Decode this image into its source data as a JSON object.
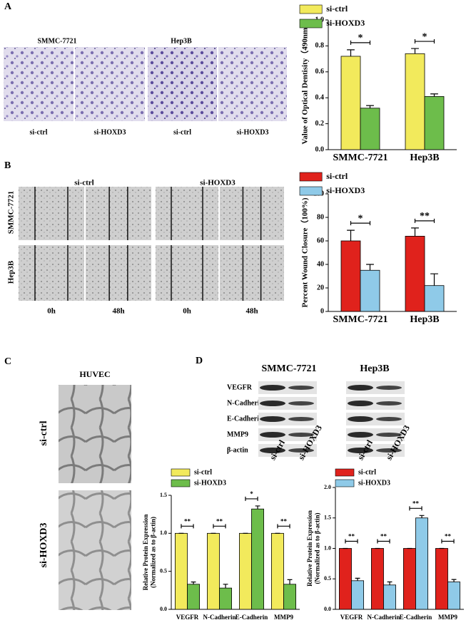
{
  "panels": {
    "A": {
      "letter": "A",
      "image_titles": [
        "SMMC-7721",
        "Hep3B"
      ],
      "image_labels": [
        "si-ctrl",
        "si-HOXD3",
        "si-ctrl",
        "si-HOXD3"
      ]
    },
    "B": {
      "letter": "B",
      "column_titles": [
        "si-ctrl",
        "si-HOXD3"
      ],
      "row_labels": [
        "SMMC-7721",
        "Hep3B"
      ],
      "time_labels": [
        "0h",
        "48h",
        "0h",
        "48h"
      ]
    },
    "C": {
      "letter": "C",
      "title": "HUVEC",
      "row_labels": [
        "si-ctrl",
        "si-HOXD3"
      ]
    },
    "D": {
      "letter": "D",
      "blot_titles": [
        "SMMC-7721",
        "Hep3B"
      ],
      "blot_rows": [
        "VEGFR",
        "N-Cadherin",
        "E-Cadherin",
        "MMP9",
        "β-actin"
      ],
      "lane_labels": [
        "si-ctrl",
        "si-HOXD3",
        "si-ctrl",
        "si-HOXD3"
      ]
    }
  },
  "chart_data": [
    {
      "type": "bar",
      "y_label": [
        "Value of Optical Dentisity（490nm)"
      ],
      "categories": [
        "SMMC-7721",
        "Hep3B"
      ],
      "series": [
        {
          "name": "si-ctrl",
          "color": "#f2ea5c",
          "values": [
            0.72,
            0.74
          ],
          "errors": [
            0.05,
            0.04
          ]
        },
        {
          "name": "si-HOXD3",
          "color": "#6dbd4b",
          "values": [
            0.32,
            0.41
          ],
          "errors": [
            0.02,
            0.02
          ]
        }
      ],
      "significance": [
        "*",
        "*"
      ],
      "ylim": [
        0,
        1.0
      ],
      "yticks": [
        {
          "value": 0,
          "label": "0.0"
        },
        0.2,
        0.4,
        0.6,
        0.8,
        {
          "value": 1,
          "label": "1.0"
        }
      ]
    },
    {
      "type": "bar",
      "y_label": [
        "Percent Wound Closure（100%)"
      ],
      "categories": [
        "SMMC-7721",
        "Hep3B"
      ],
      "series": [
        {
          "name": "si-ctrl",
          "color": "#e0221c",
          "values": [
            60,
            64
          ],
          "errors": [
            9,
            7
          ]
        },
        {
          "name": "si-HOXD3",
          "color": "#8fcae8",
          "values": [
            35,
            22
          ],
          "errors": [
            5,
            10
          ]
        }
      ],
      "significance": [
        "*",
        "**"
      ],
      "ylim": [
        0,
        100
      ],
      "yticks": [
        0,
        20,
        40,
        60,
        80,
        100
      ]
    },
    {
      "type": "bar",
      "y_label": [
        "Relative Protein Expression",
        "(Normalized as to β-actin)"
      ],
      "categories": [
        "VEGFR",
        "N-Cadherin",
        "E-Cadherin",
        "MMP9"
      ],
      "series": [
        {
          "name": "si-ctrl",
          "color": "#f2ea5c",
          "values": [
            1,
            1,
            1,
            1
          ],
          "errors": [
            0,
            0,
            0,
            0
          ]
        },
        {
          "name": "si-HOXD3",
          "color": "#6dbd4b",
          "values": [
            0.33,
            0.28,
            1.32,
            0.33
          ],
          "errors": [
            0.03,
            0.05,
            0.04,
            0.06
          ]
        }
      ],
      "significance": [
        "**",
        "**",
        "*",
        "**"
      ],
      "ylim": [
        0,
        1.5
      ],
      "yticks": [
        {
          "value": 0,
          "label": "0.0"
        },
        0.5,
        {
          "value": 1,
          "label": "1.0"
        },
        1.5
      ]
    },
    {
      "type": "bar",
      "y_label": [
        "Relative Protein Expression",
        "(Normalized as to β-actin)"
      ],
      "categories": [
        "VEGFR",
        "N-Cadherin",
        "E-Cadherin",
        "MMP9"
      ],
      "series": [
        {
          "name": "si-ctrl",
          "color": "#e0221c",
          "values": [
            1,
            1,
            1,
            1
          ],
          "errors": [
            0,
            0,
            0,
            0
          ]
        },
        {
          "name": "si-HOXD3",
          "color": "#8fcae8",
          "values": [
            0.47,
            0.4,
            1.5,
            0.45
          ],
          "errors": [
            0.04,
            0.05,
            0.04,
            0.04
          ]
        }
      ],
      "significance": [
        "**",
        "**",
        "**",
        "**"
      ],
      "ylim": [
        0,
        2.0
      ],
      "yticks": [
        {
          "value": 0,
          "label": "0.0"
        },
        0.5,
        {
          "value": 1,
          "label": "1.0"
        },
        1.5,
        {
          "value": 2,
          "label": "2.0"
        }
      ]
    }
  ]
}
